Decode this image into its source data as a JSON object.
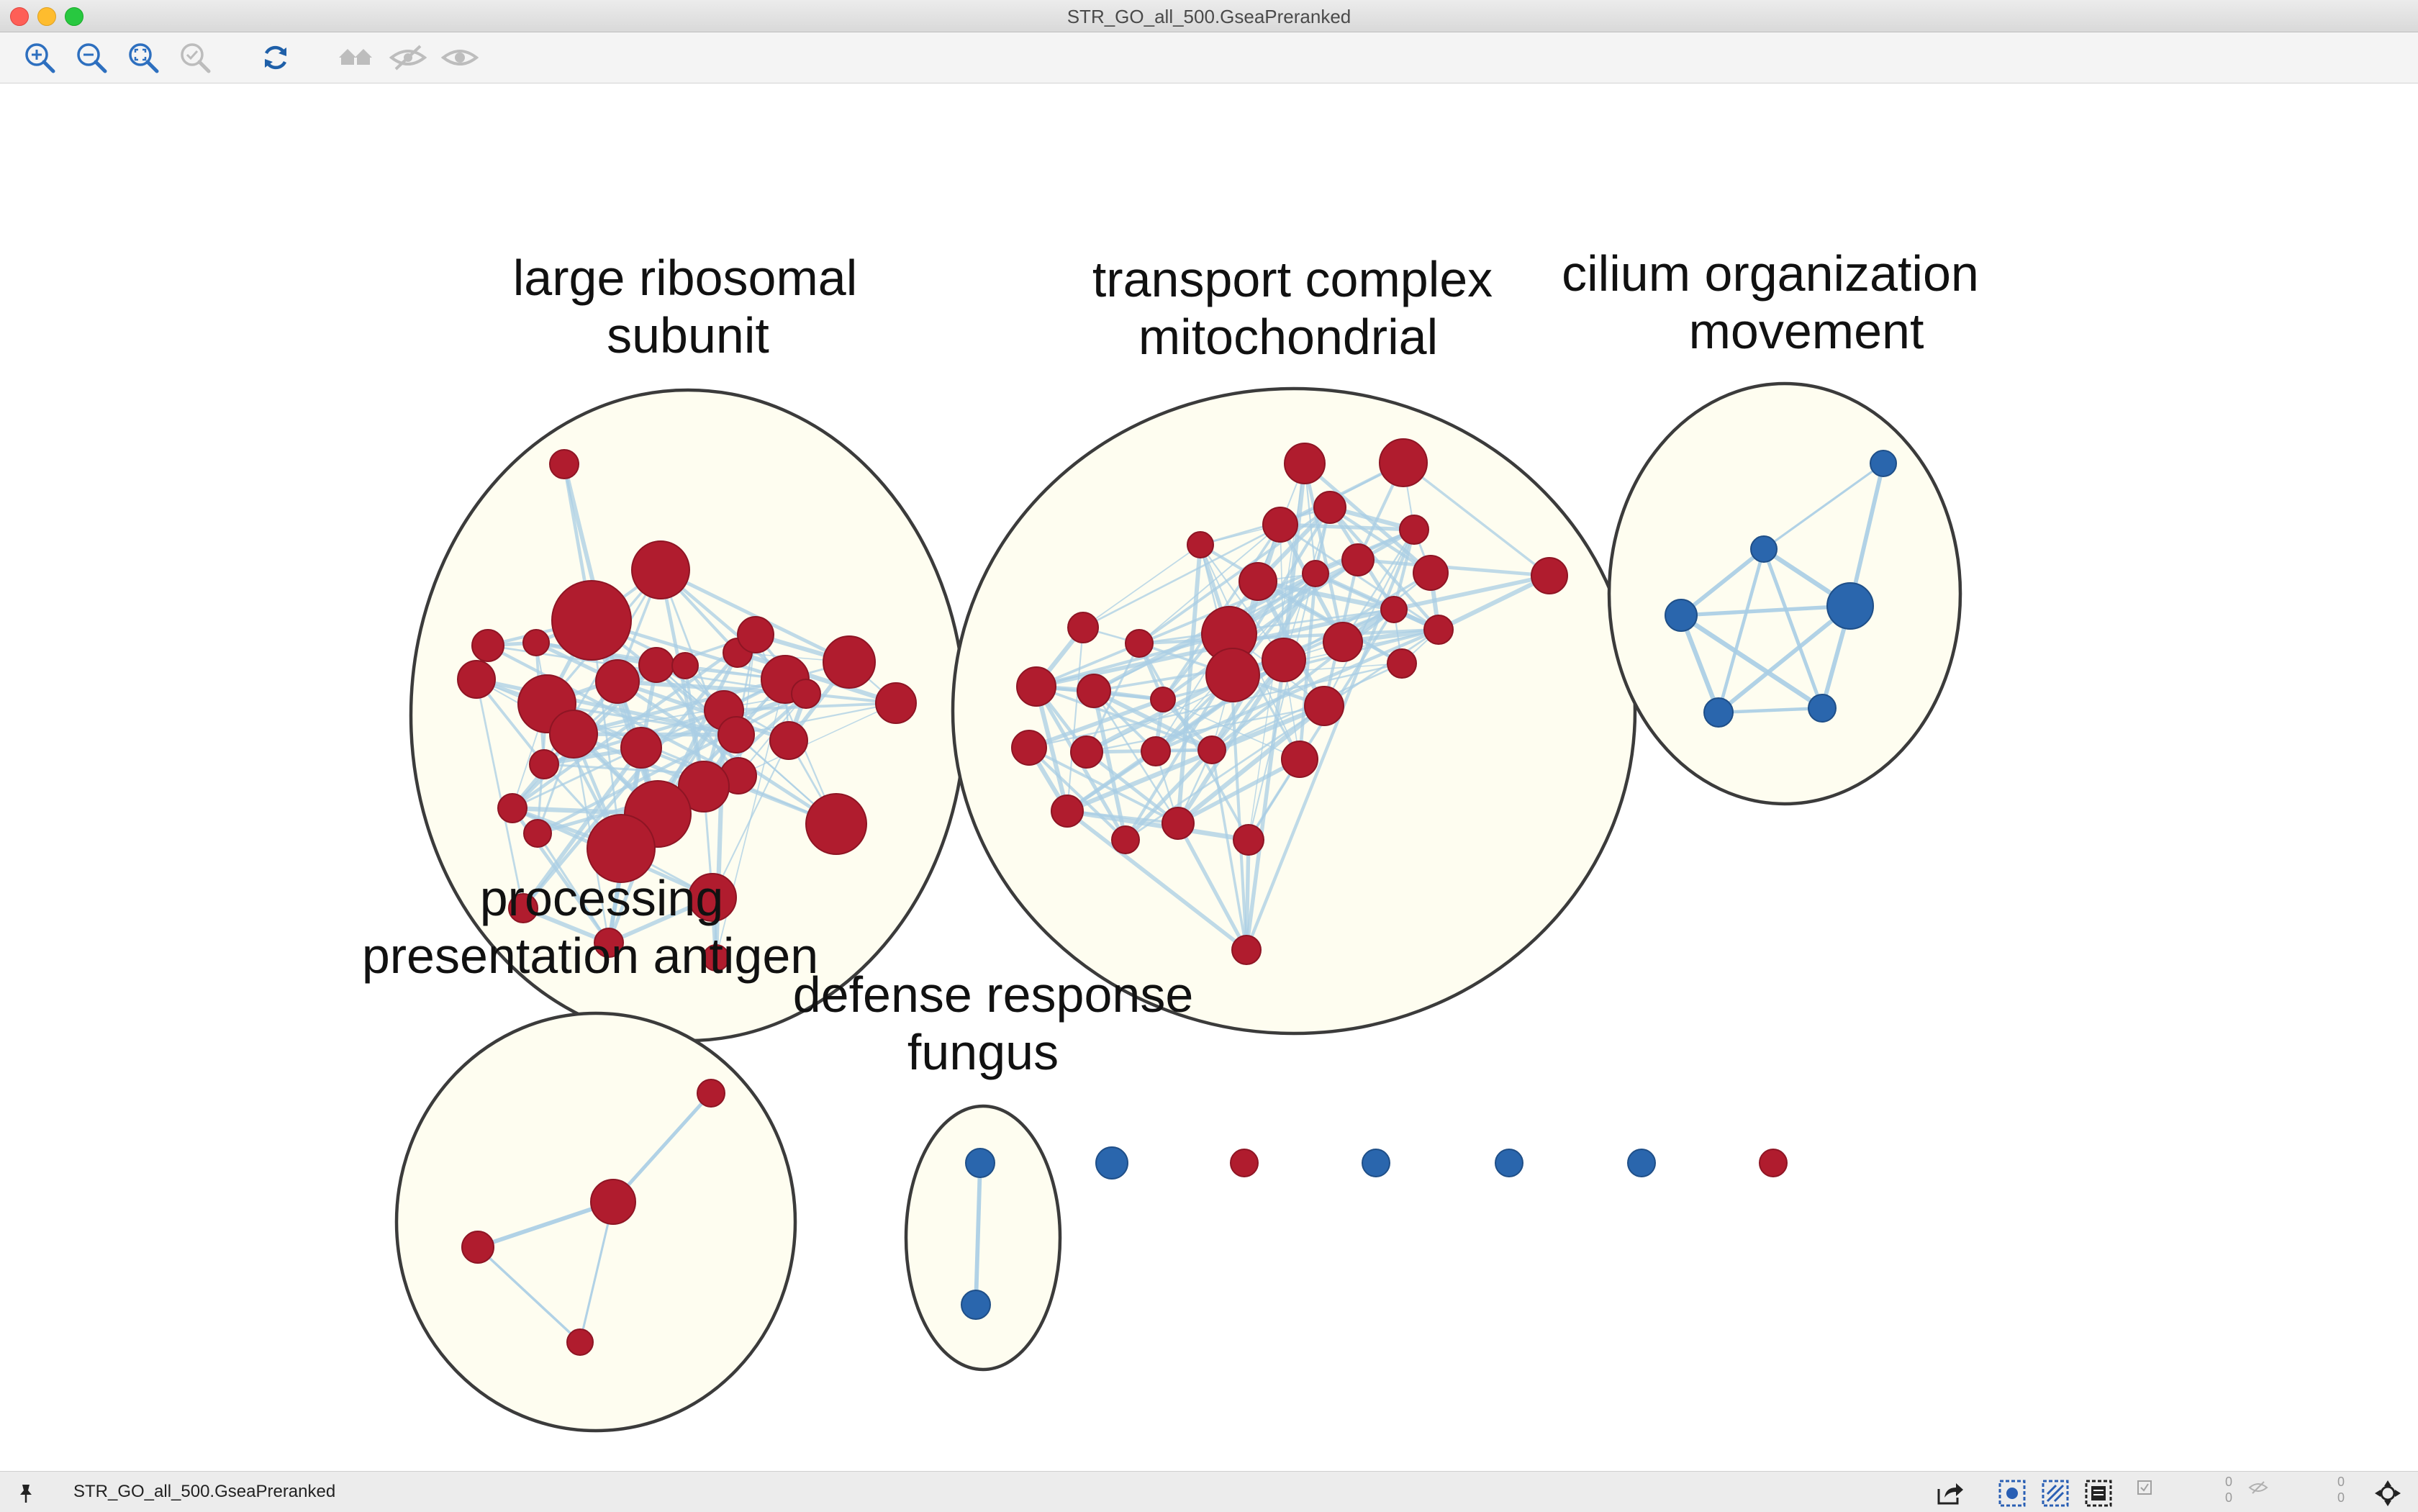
{
  "window": {
    "title": "STR_GO_all_500.GseaPreranked"
  },
  "toolbar": {
    "buttons": [
      {
        "name": "zoom-in-icon",
        "enabled": true
      },
      {
        "name": "zoom-out-icon",
        "enabled": true
      },
      {
        "name": "zoom-fit-icon",
        "enabled": true
      },
      {
        "name": "zoom-selected-icon",
        "enabled": false
      },
      {
        "name": "refresh-icon",
        "enabled": true
      },
      {
        "name": "show-all-icon",
        "enabled": false
      },
      {
        "name": "hide-selected-icon",
        "enabled": false
      },
      {
        "name": "show-selected-icon",
        "enabled": false
      }
    ]
  },
  "network": {
    "clusters": [
      {
        "id": "large-ribosomal-subunit",
        "label_line1": "large ribosomal",
        "label_line2": "subunit"
      },
      {
        "id": "transport-complex-mitochondrial",
        "label_line1": "transport complex",
        "label_line2": "mitochondrial"
      },
      {
        "id": "cilium-organization-movement",
        "label_line1": "cilium organization",
        "label_line2": "movement"
      },
      {
        "id": "processing-presentation-antigen",
        "label_line1": "processing",
        "label_line2": "presentation antigen"
      },
      {
        "id": "defense-response-fungus",
        "label_line1": "defense response",
        "label_line2": "fungus"
      }
    ],
    "colors": {
      "node_up": "#b01c2e",
      "node_down": "#2a66ad",
      "edge": "#a9cde4",
      "cluster_fill": "#fefdf0",
      "cluster_stroke": "#3b3b3b"
    }
  },
  "status": {
    "network_name": "STR_GO_all_500.GseaPreranked",
    "counts": [
      "0",
      "0",
      "0",
      "0"
    ]
  }
}
